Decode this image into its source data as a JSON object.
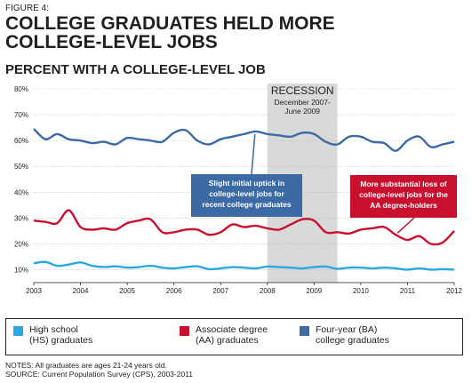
{
  "figure_label": "FIGURE 4:",
  "title": "COLLEGE GRADUATES HELD MORE COLLEGE-LEVEL JOBS",
  "subtitle": "PERCENT WITH A COLLEGE-LEVEL JOB",
  "chart_data": {
    "type": "line",
    "title": "PERCENT WITH A COLLEGE-LEVEL JOB",
    "x_ticks": [
      "2003",
      "2004",
      "2005",
      "2006",
      "2007",
      "2008",
      "2009",
      "2010",
      "2011",
      "2012"
    ],
    "y_ticks": [
      "10%",
      "20%",
      "30%",
      "40%",
      "50%",
      "60%",
      "70%",
      "80%"
    ],
    "ylim": [
      5,
      80
    ],
    "xlim": [
      2003,
      2012
    ],
    "grid": true,
    "colors": {
      "hs": "#29a9e0",
      "aa": "#c8102e",
      "ba": "#3c6aa5",
      "recession": "#d9d9d9",
      "grid": "#bdbdbd"
    },
    "recession": {
      "label": "RECESSION",
      "sublabel": "December 2007-\nJune 2009",
      "start": 2008.0,
      "end": 2009.5
    },
    "series": [
      {
        "key": "hs",
        "name": "High school\n(HS) graduates",
        "color": "#29a9e0",
        "x": [
          2003.0,
          2003.25,
          2003.5,
          2003.75,
          2004.0,
          2004.25,
          2004.5,
          2004.75,
          2005.0,
          2005.25,
          2005.5,
          2005.75,
          2006.0,
          2006.25,
          2006.5,
          2006.75,
          2007.0,
          2007.25,
          2007.5,
          2007.75,
          2008.0,
          2008.25,
          2008.5,
          2008.75,
          2009.0,
          2009.25,
          2009.5,
          2009.75,
          2010.0,
          2010.25,
          2010.5,
          2010.75,
          2011.0,
          2011.25,
          2011.5,
          2011.75,
          2012.0
        ],
        "values": [
          12.5,
          13.0,
          11.5,
          12.0,
          12.8,
          11.5,
          11.0,
          11.3,
          10.8,
          11.0,
          11.5,
          10.8,
          10.5,
          11.0,
          11.3,
          10.2,
          10.5,
          11.0,
          10.8,
          10.5,
          11.2,
          11.0,
          10.8,
          10.5,
          11.0,
          11.2,
          10.3,
          10.8,
          10.8,
          10.5,
          10.8,
          10.5,
          10.0,
          10.5,
          10.0,
          10.2,
          10.0
        ]
      },
      {
        "key": "aa",
        "name": "Associate degree\n(AA) graduates",
        "color": "#c8102e",
        "x": [
          2003.0,
          2003.25,
          2003.5,
          2003.75,
          2004.0,
          2004.25,
          2004.5,
          2004.75,
          2005.0,
          2005.25,
          2005.5,
          2005.75,
          2006.0,
          2006.25,
          2006.5,
          2006.75,
          2007.0,
          2007.25,
          2007.5,
          2007.75,
          2008.0,
          2008.25,
          2008.5,
          2008.75,
          2009.0,
          2009.25,
          2009.5,
          2009.75,
          2010.0,
          2010.25,
          2010.5,
          2010.75,
          2011.0,
          2011.25,
          2011.5,
          2011.75,
          2012.0
        ],
        "values": [
          29.0,
          28.5,
          28.0,
          33.0,
          26.5,
          25.5,
          26.0,
          25.5,
          28.0,
          29.0,
          29.5,
          24.5,
          24.5,
          25.5,
          25.5,
          23.5,
          24.5,
          27.5,
          26.5,
          27.0,
          26.0,
          25.5,
          27.5,
          29.5,
          29.0,
          24.5,
          24.5,
          24.0,
          25.5,
          26.0,
          26.5,
          23.5,
          21.5,
          23.0,
          20.0,
          20.5,
          25.0
        ]
      },
      {
        "key": "ba",
        "name": "Four-year (BA)\ncollege graduates",
        "color": "#3c6aa5",
        "x": [
          2003.0,
          2003.25,
          2003.5,
          2003.75,
          2004.0,
          2004.25,
          2004.5,
          2004.75,
          2005.0,
          2005.25,
          2005.5,
          2005.75,
          2006.0,
          2006.25,
          2006.5,
          2006.75,
          2007.0,
          2007.25,
          2007.5,
          2007.75,
          2008.0,
          2008.25,
          2008.5,
          2008.75,
          2009.0,
          2009.25,
          2009.5,
          2009.75,
          2010.0,
          2010.25,
          2010.5,
          2010.75,
          2011.0,
          2011.25,
          2011.5,
          2011.75,
          2012.0
        ],
        "values": [
          64.5,
          60.5,
          62.5,
          60.5,
          60.0,
          59.0,
          59.5,
          58.5,
          61.0,
          60.5,
          60.0,
          59.5,
          63.0,
          64.0,
          60.0,
          58.5,
          60.5,
          61.5,
          62.5,
          63.5,
          62.5,
          62.0,
          61.5,
          63.0,
          62.5,
          59.5,
          58.5,
          61.5,
          61.5,
          59.5,
          59.0,
          56.0,
          60.0,
          61.5,
          57.5,
          58.5,
          59.5
        ]
      }
    ],
    "annotations": [
      {
        "key": "ba_note",
        "text": "Slight initial uptick in\ncollege-level jobs for\nrecent college graduates",
        "color": "#3c6aa5"
      },
      {
        "key": "aa_note",
        "text": "More substantial loss of\ncollege-level jobs for the\nAA degree-holders",
        "color": "#c8102e"
      }
    ]
  },
  "notes": {
    "line1": "NOTES: All graduates are ages 21-24 years old.",
    "line2": "SOURCE: Current Population Survey (CPS), 2003-2011"
  }
}
